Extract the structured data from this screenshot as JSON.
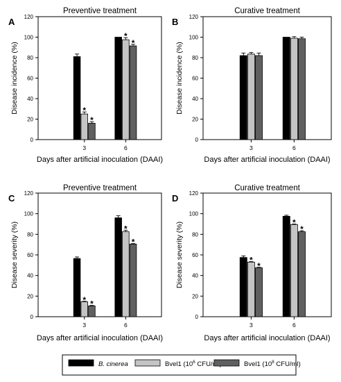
{
  "colors": {
    "bcinerea": "#000000",
    "bvel1_6": "#c4c4c4",
    "bvel1_8": "#606060"
  },
  "legend": {
    "items": [
      {
        "label": "B. cinerea",
        "italic": true,
        "color": "#000000"
      },
      {
        "label_main": "Bvel1 (10",
        "label_sup": "6",
        "label_tail": " CFU/ml)",
        "color": "#c4c4c4"
      },
      {
        "label_main": "Bvel1 (10",
        "label_sup": "8",
        "label_tail": " CFU/ml)",
        "color": "#606060"
      }
    ]
  },
  "chart_data": [
    {
      "panel": "A",
      "type": "bar",
      "title": "Preventive treatment",
      "xlabel": "Days after artificial inoculation (DAAI)",
      "ylabel": "Disease incidence (%)",
      "ylim": [
        0,
        120
      ],
      "yticks": [
        0,
        20,
        40,
        60,
        80,
        100,
        120
      ],
      "categories": [
        "3",
        "6"
      ],
      "series": [
        {
          "name": "B. cinerea",
          "values": [
            81,
            100
          ],
          "errors": [
            2.5,
            0
          ],
          "stars": [
            false,
            false
          ]
        },
        {
          "name": "Bvel1 (10^6 CFU/ml)",
          "values": [
            25,
            97.5
          ],
          "errors": [
            2,
            2
          ],
          "stars": [
            true,
            true
          ]
        },
        {
          "name": "Bvel1 (10^8 CFU/ml)",
          "values": [
            16,
            91.5
          ],
          "errors": [
            1.5,
            1.5
          ],
          "stars": [
            true,
            true
          ]
        }
      ]
    },
    {
      "panel": "B",
      "type": "bar",
      "title": "Curative treatment",
      "xlabel": "Days after artificial inoculation (DAAI)",
      "ylabel": "Disease incidence (%)",
      "ylim": [
        0,
        120
      ],
      "yticks": [
        0,
        20,
        40,
        60,
        80,
        100,
        120
      ],
      "categories": [
        "3",
        "6"
      ],
      "series": [
        {
          "name": "B. cinerea",
          "values": [
            82,
            100
          ],
          "errors": [
            2.5,
            0
          ],
          "stars": [
            false,
            false
          ]
        },
        {
          "name": "Bvel1 (10^6 CFU/ml)",
          "values": [
            83.5,
            99
          ],
          "errors": [
            1.5,
            1.5
          ],
          "stars": [
            false,
            false
          ]
        },
        {
          "name": "Bvel1 (10^8 CFU/ml)",
          "values": [
            82,
            98.5
          ],
          "errors": [
            2.5,
            1.5
          ],
          "stars": [
            false,
            false
          ]
        }
      ]
    },
    {
      "panel": "C",
      "type": "bar",
      "title": "Preventive treatment",
      "xlabel": "Days after artificial inoculation (DAAI)",
      "ylabel": "Disease severity (%)",
      "ylim": [
        0,
        120
      ],
      "yticks": [
        0,
        20,
        40,
        60,
        80,
        100,
        120
      ],
      "categories": [
        "3",
        "6"
      ],
      "series": [
        {
          "name": "B. cinerea",
          "values": [
            56.5,
            96
          ],
          "errors": [
            1.5,
            2
          ],
          "stars": [
            false,
            false
          ]
        },
        {
          "name": "Bvel1 (10^6 CFU/ml)",
          "values": [
            14.5,
            82.5
          ],
          "errors": [
            0.5,
            1.5
          ],
          "stars": [
            true,
            true
          ]
        },
        {
          "name": "Bvel1 (10^8 CFU/ml)",
          "values": [
            10.5,
            70.5
          ],
          "errors": [
            0.5,
            0.5
          ],
          "stars": [
            true,
            true
          ]
        }
      ]
    },
    {
      "panel": "D",
      "type": "bar",
      "title": "Curative treatment",
      "xlabel": "Days after artificial inoculation (DAAI)",
      "ylabel": "Disease severity (%)",
      "ylim": [
        0,
        120
      ],
      "yticks": [
        0,
        20,
        40,
        60,
        80,
        100,
        120
      ],
      "categories": [
        "3",
        "6"
      ],
      "series": [
        {
          "name": "B. cinerea",
          "values": [
            57.5,
            97.5
          ],
          "errors": [
            1.5,
            1
          ],
          "stars": [
            false,
            false
          ]
        },
        {
          "name": "Bvel1 (10^6 CFU/ml)",
          "values": [
            53,
            89.5
          ],
          "errors": [
            0.5,
            0.5
          ],
          "stars": [
            true,
            true
          ]
        },
        {
          "name": "Bvel1 (10^8 CFU/ml)",
          "values": [
            47.5,
            82.5
          ],
          "errors": [
            0.5,
            1
          ],
          "stars": [
            true,
            true
          ]
        }
      ]
    }
  ]
}
